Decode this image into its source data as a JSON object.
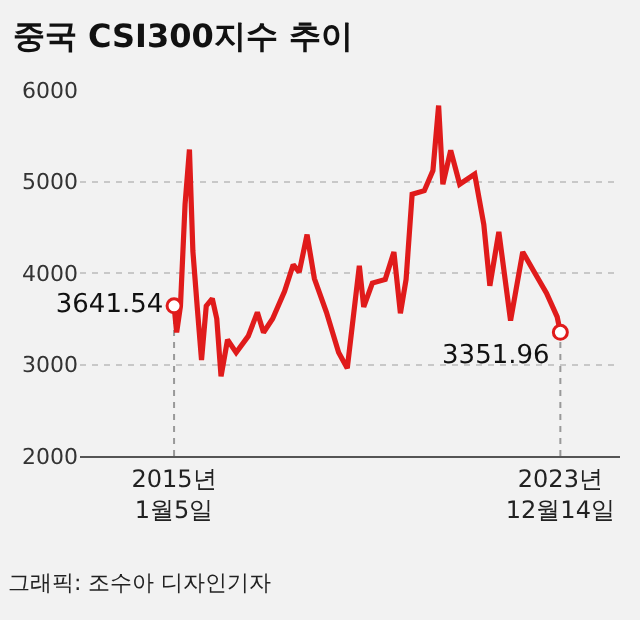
{
  "chart_data": {
    "type": "line",
    "title": "중국 CSI300지수 추이",
    "x": [
      "2015-01-05",
      "2015-01-27",
      "2015-02-28",
      "2015-04-08",
      "2015-05-15",
      "2015-06-13",
      "2015-07-19",
      "2015-08-25",
      "2015-10-04",
      "2015-11-24",
      "2016-01-01",
      "2016-02-06",
      "2016-04-01",
      "2016-06-13",
      "2016-09-23",
      "2016-12-09",
      "2017-01-30",
      "2017-04-17",
      "2017-07-27",
      "2017-10-08",
      "2017-11-28",
      "2018-02-02",
      "2018-04-05",
      "2018-07-16",
      "2018-10-27",
      "2019-01-08",
      "2019-04-20",
      "2019-05-27",
      "2019-08-08",
      "2019-11-25",
      "2020-02-06",
      "2020-04-01",
      "2020-05-19",
      "2020-07-09",
      "2020-10-20",
      "2021-01-01",
      "2021-02-18",
      "2021-03-26",
      "2021-05-31",
      "2021-08-15",
      "2021-12-20",
      "2022-03-07",
      "2022-04-27",
      "2022-07-12",
      "2022-10-19",
      "2023-01-30",
      "2023-05-12",
      "2023-08-19",
      "2023-11-17",
      "2023-12-14"
    ],
    "series": [
      {
        "color": "#e01b1b",
        "values": [
          3641.54,
          3350,
          3640,
          4750,
          5350,
          4240,
          3640,
          3050,
          3640,
          3720,
          3500,
          2870,
          3270,
          3130,
          3310,
          3570,
          3350,
          3500,
          3800,
          4090,
          4010,
          4420,
          3940,
          3570,
          3130,
          2960,
          4080,
          3630,
          3890,
          3930,
          4230,
          3560,
          3930,
          4860,
          4900,
          5120,
          5830,
          4970,
          5340,
          4970,
          5080,
          4530,
          3860,
          4450,
          3480,
          4230,
          4000,
          3780,
          3520,
          3351.96
        ],
        "value_labels": [
          "3641.54",
          null,
          null,
          null,
          null,
          null,
          null,
          null,
          null,
          null,
          null,
          null,
          null,
          null,
          null,
          null,
          null,
          null,
          null,
          null,
          null,
          null,
          null,
          null,
          null,
          null,
          null,
          null,
          null,
          null,
          null,
          null,
          null,
          null,
          null,
          null,
          null,
          null,
          null,
          null,
          null,
          null,
          null,
          null,
          null,
          null,
          null,
          null,
          null,
          "3351.96"
        ]
      }
    ],
    "xlim": [
      "2012-11-01",
      "2025-05-01"
    ],
    "xticks": [
      {
        "value": "2015-01-05",
        "label": "2015년\n1월5일"
      },
      {
        "value": "2023-12-14",
        "label": "2023년\n12월14일"
      }
    ],
    "ylim": [
      2000,
      6000
    ],
    "yticks": [
      2000,
      3000,
      4000,
      5000,
      6000
    ],
    "grid": "y",
    "legend": false,
    "annotations": [
      "그래픽: 조수아 디자인기자"
    ]
  }
}
